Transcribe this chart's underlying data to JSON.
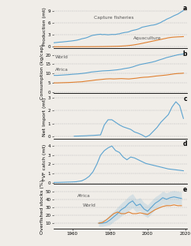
{
  "blue_color": "#5ba3d0",
  "orange_color": "#e08030",
  "bg_color": "#f0ede8",
  "panel_a_years": [
    1950,
    1951,
    1952,
    1953,
    1954,
    1955,
    1956,
    1957,
    1958,
    1959,
    1960,
    1961,
    1962,
    1963,
    1964,
    1965,
    1966,
    1967,
    1968,
    1969,
    1970,
    1971,
    1972,
    1973,
    1974,
    1975,
    1976,
    1977,
    1978,
    1979,
    1980,
    1981,
    1982,
    1983,
    1984,
    1985,
    1986,
    1987,
    1988,
    1989,
    1990,
    1991,
    1992,
    1993,
    1994,
    1995,
    1996,
    1997,
    1998,
    1999,
    2000,
    2001,
    2002,
    2003,
    2004,
    2005,
    2006,
    2007,
    2008,
    2009,
    2010,
    2011,
    2012,
    2013,
    2014,
    2015,
    2016,
    2017,
    2018,
    2019
  ],
  "panel_a_capture": [
    1.0,
    1.05,
    1.1,
    1.15,
    1.18,
    1.22,
    1.28,
    1.32,
    1.38,
    1.42,
    1.48,
    1.55,
    1.62,
    1.72,
    1.85,
    2.0,
    2.1,
    2.2,
    2.35,
    2.55,
    2.75,
    2.9,
    2.95,
    3.05,
    3.1,
    3.15,
    3.05,
    3.1,
    3.05,
    3.0,
    3.05,
    3.1,
    3.08,
    3.1,
    3.2,
    3.25,
    3.4,
    3.5,
    3.6,
    3.65,
    3.75,
    3.95,
    4.1,
    4.2,
    4.3,
    4.45,
    4.65,
    4.9,
    5.0,
    5.1,
    5.2,
    5.3,
    5.4,
    5.45,
    5.55,
    5.7,
    5.9,
    6.1,
    6.4,
    6.6,
    6.9,
    7.1,
    7.3,
    7.55,
    7.8,
    8.0,
    8.2,
    8.5,
    8.8,
    9.1
  ],
  "panel_a_aqua": [
    0.0,
    0.0,
    0.0,
    0.0,
    0.0,
    0.0,
    0.0,
    0.0,
    0.0,
    0.0,
    0.01,
    0.01,
    0.01,
    0.01,
    0.01,
    0.02,
    0.02,
    0.02,
    0.02,
    0.02,
    0.03,
    0.03,
    0.03,
    0.04,
    0.04,
    0.05,
    0.05,
    0.06,
    0.07,
    0.08,
    0.09,
    0.1,
    0.11,
    0.12,
    0.13,
    0.15,
    0.17,
    0.2,
    0.23,
    0.27,
    0.32,
    0.37,
    0.43,
    0.5,
    0.58,
    0.66,
    0.75,
    0.85,
    0.95,
    1.05,
    1.15,
    1.25,
    1.35,
    1.45,
    1.55,
    1.65,
    1.75,
    1.85,
    1.95,
    2.05,
    2.15,
    2.25,
    2.32,
    2.38,
    2.42,
    2.45,
    2.48,
    2.5,
    2.52,
    2.55
  ],
  "panel_b_years": [
    1950,
    1952,
    1955,
    1958,
    1960,
    1963,
    1965,
    1968,
    1970,
    1972,
    1974,
    1976,
    1978,
    1980,
    1982,
    1984,
    1986,
    1988,
    1990,
    1992,
    1994,
    1996,
    1998,
    2000,
    2002,
    2004,
    2006,
    2008,
    2010,
    2012,
    2014,
    2016,
    2018,
    2019
  ],
  "panel_b_world": [
    9.0,
    9.0,
    9.2,
    9.4,
    9.6,
    9.8,
    10.0,
    10.4,
    10.8,
    11.0,
    11.2,
    11.4,
    11.5,
    11.6,
    11.8,
    12.0,
    12.3,
    12.7,
    13.0,
    13.5,
    14.2,
    14.8,
    15.2,
    15.6,
    16.0,
    16.5,
    17.2,
    17.8,
    18.5,
    19.0,
    19.5,
    20.0,
    20.3,
    20.5
  ],
  "panel_b_africa": [
    5.0,
    5.0,
    5.1,
    5.2,
    5.3,
    5.5,
    5.6,
    6.0,
    6.2,
    6.5,
    6.7,
    6.9,
    7.1,
    7.2,
    7.1,
    7.2,
    7.3,
    7.2,
    7.1,
    7.3,
    7.5,
    7.8,
    8.0,
    8.1,
    8.3,
    8.6,
    8.8,
    9.0,
    9.2,
    9.5,
    9.8,
    10.0,
    10.1,
    10.2
  ],
  "panel_c_years": [
    1961,
    1963,
    1965,
    1967,
    1969,
    1971,
    1973,
    1975,
    1977,
    1979,
    1981,
    1983,
    1985,
    1987,
    1989,
    1991,
    1993,
    1995,
    1997,
    1999,
    2001,
    2003,
    2005,
    2007,
    2009,
    2011,
    2013,
    2015,
    2017,
    2019
  ],
  "panel_c_vals": [
    0.02,
    0.03,
    0.04,
    0.05,
    0.07,
    0.08,
    0.1,
    0.12,
    0.9,
    1.3,
    1.3,
    1.1,
    0.9,
    0.75,
    0.65,
    0.55,
    0.35,
    0.25,
    0.12,
    -0.05,
    0.1,
    0.4,
    0.7,
    1.1,
    1.4,
    1.7,
    2.3,
    2.7,
    2.4,
    1.4
  ],
  "panel_d_years": [
    1950,
    1953,
    1956,
    1959,
    1962,
    1965,
    1967,
    1969,
    1971,
    1973,
    1975,
    1977,
    1979,
    1981,
    1983,
    1985,
    1987,
    1989,
    1991,
    1993,
    1995,
    1997,
    1999,
    2001,
    2003,
    2005,
    2007,
    2009,
    2011,
    2013,
    2015,
    2017,
    2019
  ],
  "panel_d_vals": [
    0.02,
    0.03,
    0.05,
    0.07,
    0.1,
    0.2,
    0.4,
    0.7,
    1.2,
    2.0,
    3.0,
    3.5,
    3.8,
    4.0,
    3.5,
    3.3,
    2.8,
    2.5,
    2.8,
    2.7,
    2.5,
    2.3,
    2.1,
    2.0,
    1.9,
    1.8,
    1.7,
    1.6,
    1.5,
    1.45,
    1.4,
    1.35,
    1.3
  ],
  "panel_e_years": [
    1974,
    1976,
    1978,
    1980,
    1982,
    1984,
    1986,
    1988,
    1990,
    1992,
    1994,
    1996,
    1998,
    2000,
    2002,
    2004,
    2006,
    2008,
    2010,
    2012,
    2014,
    2016,
    2018
  ],
  "panel_e_africa": [
    10,
    10,
    11,
    14,
    18,
    22,
    27,
    30,
    35,
    38,
    32,
    34,
    28,
    25,
    30,
    35,
    38,
    42,
    40,
    42,
    43,
    42,
    41
  ],
  "panel_e_world": [
    10,
    11,
    14,
    18,
    22,
    24,
    22,
    22,
    24,
    22,
    22,
    23,
    22,
    21,
    24,
    27,
    29,
    31,
    32,
    32,
    33,
    32,
    32
  ],
  "panel_e_af_up": [
    14,
    14,
    16,
    21,
    25,
    30,
    35,
    39,
    44,
    47,
    40,
    42,
    36,
    33,
    38,
    43,
    46,
    50,
    48,
    50,
    51,
    50,
    49
  ],
  "panel_e_af_lo": [
    6,
    6,
    7,
    8,
    12,
    15,
    19,
    22,
    26,
    29,
    24,
    26,
    20,
    17,
    22,
    27,
    30,
    34,
    32,
    34,
    35,
    34,
    33
  ]
}
